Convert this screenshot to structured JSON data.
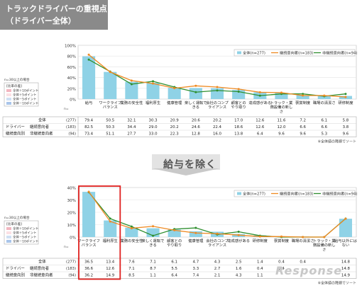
{
  "title": {
    "line1": "トラックドライバーの重視点",
    "line2": "（ドライバー全体）"
  },
  "middle_label": "給与を除く",
  "watermark": "Response",
  "charts": [
    {
      "yticks": [
        "100%",
        "80%",
        "60%",
        "40%",
        "20%",
        "0%"
      ],
      "legend": [
        "全体(n=277)",
        "継続意向者(n=183)",
        "非継続意向者(n=94)"
      ],
      "sig_box": {
        "title": "n=30以上の場合",
        "header": "[比率の差]",
        "items": [
          "全体＋10ポイント",
          "全体＋5ポイント",
          "全体－5ポイント",
          "全体－10ポイント"
        ]
      },
      "n_label": "n=",
      "row_group": "ドライバー",
      "row_sub": "継続意向別",
      "row_labels": [
        "全体",
        "継続意向者",
        "非継続意向者"
      ],
      "row_ns": [
        "(277)",
        "(183)",
        "(94)"
      ],
      "categories": [
        "給与",
        "ワークライフバランス",
        "業務の安全性",
        "福利厚生",
        "健康管理",
        "楽しく運転できる",
        "会社のコンプライアンス",
        "顧客との やり取り",
        "達成感がある",
        "トラック・業務設備の新しさ",
        "褒賞制度",
        "職場の清潔さ",
        "研修制度"
      ],
      "values_all": [
        "79.4",
        "50.5",
        "32.1",
        "30.3",
        "20.9",
        "20.6",
        "20.2",
        "17.0",
        "12.6",
        "11.6",
        "7.2",
        "6.1",
        "5.8"
      ],
      "values_cont": [
        "82.5",
        "50.3",
        "34.4",
        "29.0",
        "20.2",
        "24.6",
        "22.4",
        "18.6",
        "12.6",
        "12.0",
        "6.6",
        "6.6",
        "3.8"
      ],
      "values_non": [
        "73.4",
        "51.1",
        "27.7",
        "33.0",
        "22.3",
        "12.8",
        "16.0",
        "13.8",
        "6.4",
        "9.6",
        "9.6",
        "5.3",
        "9.6"
      ],
      "note": "※全体値の降順でソート"
    },
    {
      "yticks": [
        "40%",
        "30%",
        "20%",
        "10%",
        "0%"
      ],
      "legend": [
        "全体(n=277)",
        "継続意向者(n=183)",
        "非継続意向者(n=94)"
      ],
      "sig_box": {
        "title": "n=30以上の場合",
        "header": "[比率の差]",
        "items": [
          "全体＋10ポイント",
          "全体＋5ポイント",
          "全体－5ポイント",
          "全体－10ポイント"
        ]
      },
      "n_label": "n=",
      "row_group": "ドライバー",
      "row_sub": "継続意向別",
      "row_labels": [
        "全体",
        "継続意向者",
        "非継続意向者"
      ],
      "row_ns": [
        "(277)",
        "(183)",
        "(94)"
      ],
      "categories": [
        "ワークライフバランス",
        "福利厚生",
        "業務の安全性",
        "楽しく運転できる",
        "顧客との やり取り",
        "健康管理",
        "会社のコンプライアンス",
        "達成感がある",
        "研修制度",
        "褒賞制度",
        "職場の清潔さ",
        "トラック・業務設備の新しさ",
        "給与以外にはない"
      ],
      "values_all": [
        "36.5",
        "13.4",
        "7.6",
        "7.1",
        "6.1",
        "4.7",
        "4.3",
        "2.5",
        "1.4",
        "0.4",
        "0.4",
        "",
        "14.8"
      ],
      "values_cont": [
        "36.6",
        "12.6",
        "7.1",
        "8.7",
        "5.5",
        "3.3",
        "2.7",
        "1.6",
        "0.4",
        "0.4",
        "",
        "",
        "14.8"
      ],
      "values_non": [
        "36.2",
        "14.9",
        "8.5",
        "1.1",
        "6.4",
        "7.4",
        "2.1",
        "4.3",
        "1.1",
        "",
        "",
        "",
        "14.9"
      ],
      "note": "※全体値の降順でソート"
    }
  ],
  "chart_data": [
    {
      "type": "bar",
      "categories": [
        "給与",
        "ワークライフバランス",
        "業務の安全性",
        "福利厚生",
        "健康管理",
        "楽しく運転できる",
        "会社のコンプライアンス",
        "顧客とのやり取り",
        "達成感がある",
        "トラック・業務設備の新しさ",
        "褒賞制度",
        "職場の清潔さ",
        "研修制度"
      ],
      "series": [
        {
          "name": "全体(n=277)",
          "kind": "bar",
          "values": [
            79.4,
            50.5,
            32.1,
            30.3,
            20.9,
            20.6,
            20.2,
            17.0,
            12.6,
            11.6,
            7.2,
            6.1,
            5.8
          ]
        },
        {
          "name": "継続意向者(n=183)",
          "kind": "line",
          "values": [
            82.5,
            50.3,
            34.4,
            29.0,
            20.2,
            24.6,
            22.4,
            18.6,
            12.6,
            12.0,
            6.6,
            6.6,
            3.8
          ]
        },
        {
          "name": "非継続意向者(n=94)",
          "kind": "line",
          "values": [
            73.4,
            51.1,
            27.7,
            33.0,
            22.3,
            12.8,
            16.0,
            13.8,
            6.4,
            9.6,
            9.6,
            5.3,
            9.6
          ]
        }
      ],
      "ylim": [
        0,
        100
      ],
      "legend_position": "top-right",
      "colors": {
        "bar": "#8fd2e6",
        "cont": "#ef8a22",
        "non": "#2f8f2f"
      }
    },
    {
      "type": "bar",
      "categories": [
        "ワークライフバランス",
        "福利厚生",
        "業務の安全性",
        "楽しく運転できる",
        "顧客とのやり取り",
        "健康管理",
        "会社のコンプライアンス",
        "達成感がある",
        "研修制度",
        "褒賞制度",
        "職場の清潔さ",
        "トラック・業務設備の新しさ",
        "給与以外にはない"
      ],
      "series": [
        {
          "name": "全体(n=277)",
          "kind": "bar",
          "values": [
            36.5,
            13.4,
            7.6,
            7.1,
            6.1,
            4.7,
            4.3,
            2.5,
            1.4,
            0.4,
            0.4,
            0.0,
            14.8
          ]
        },
        {
          "name": "継続意向者(n=183)",
          "kind": "line",
          "values": [
            36.6,
            12.6,
            7.1,
            8.7,
            5.5,
            3.3,
            2.7,
            1.6,
            0.4,
            0.4,
            0.0,
            0.0,
            14.8
          ]
        },
        {
          "name": "非継続意向者(n=94)",
          "kind": "line",
          "values": [
            36.2,
            14.9,
            8.5,
            1.1,
            6.4,
            7.4,
            2.1,
            4.3,
            1.1,
            0.0,
            0.0,
            0.0,
            14.9
          ]
        }
      ],
      "ylim": [
        0,
        40
      ],
      "legend_position": "top-right",
      "highlight_categories": [
        "ワークライフバランス",
        "福利厚生"
      ],
      "colors": {
        "bar": "#8fd2e6",
        "cont": "#ef8a22",
        "non": "#2f8f2f",
        "highlight": "#e0201f"
      }
    }
  ]
}
